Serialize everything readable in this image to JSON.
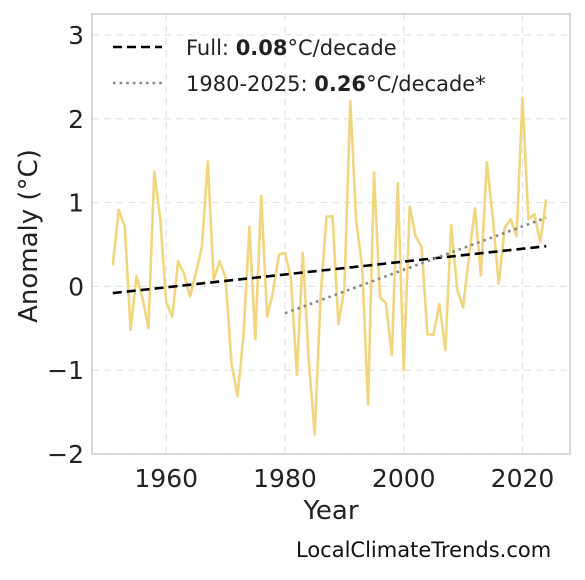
{
  "credit": "LocalClimateTrends.com",
  "chart_data": {
    "type": "line",
    "title": "",
    "xlabel": "Year",
    "ylabel": "Anomaly (°C)",
    "xlim": [
      1947.5,
      2028
    ],
    "ylim": [
      -2,
      3.25
    ],
    "x_ticks": [
      1960,
      1980,
      2000,
      2020
    ],
    "y_ticks": [
      {
        "value": -2,
        "label": "−2"
      },
      {
        "value": -1,
        "label": "−1"
      },
      {
        "value": 0,
        "label": "0"
      },
      {
        "value": 1,
        "label": "1"
      },
      {
        "value": 2,
        "label": "2"
      },
      {
        "value": 3,
        "label": "3"
      }
    ],
    "grid": true,
    "legend_position": "top-left",
    "series": [
      {
        "color": "#f2d67f",
        "style": "solid",
        "x": [
          1951,
          1952,
          1953,
          1954,
          1955,
          1956,
          1957,
          1958,
          1959,
          1960,
          1961,
          1962,
          1963,
          1964,
          1965,
          1966,
          1967,
          1968,
          1969,
          1970,
          1971,
          1972,
          1973,
          1974,
          1975,
          1976,
          1977,
          1978,
          1979,
          1980,
          1981,
          1982,
          1983,
          1984,
          1985,
          1986,
          1987,
          1988,
          1989,
          1990,
          1991,
          1992,
          1993,
          1994,
          1995,
          1996,
          1997,
          1998,
          1999,
          2000,
          2001,
          2002,
          2003,
          2004,
          2005,
          2006,
          2007,
          2008,
          2009,
          2010,
          2011,
          2012,
          2013,
          2014,
          2015,
          2016,
          2017,
          2018,
          2019,
          2020,
          2021,
          2022,
          2023,
          2024
        ],
        "values": [
          0.25,
          0.91,
          0.72,
          -0.52,
          0.12,
          -0.14,
          -0.5,
          1.37,
          0.8,
          -0.18,
          -0.36,
          0.3,
          0.15,
          -0.12,
          0.16,
          0.47,
          1.49,
          0.08,
          0.3,
          0.1,
          -0.92,
          -1.31,
          -0.6,
          0.71,
          -0.63,
          1.08,
          -0.36,
          -0.06,
          0.38,
          0.4,
          0.1,
          -1.06,
          0.4,
          -0.87,
          -1.77,
          -0.13,
          0.83,
          0.84,
          -0.45,
          -0.03,
          2.21,
          0.78,
          0.23,
          -1.41,
          1.36,
          -0.13,
          -0.2,
          -0.82,
          1.23,
          -1.0,
          0.95,
          0.6,
          0.47,
          -0.57,
          -0.58,
          -0.21,
          -0.76,
          0.73,
          -0.04,
          -0.25,
          0.37,
          0.93,
          0.13,
          1.48,
          0.82,
          0.03,
          0.7,
          0.8,
          0.6,
          2.25,
          0.8,
          0.86,
          0.53,
          1.04
        ]
      },
      {
        "name": "Full",
        "rate": "0.08",
        "unit": "°C/decade",
        "color": "#000000",
        "style": "dashed",
        "x": [
          1951,
          2024
        ],
        "values": [
          -0.08,
          0.48
        ]
      },
      {
        "name": "1980-2025",
        "rate": "0.26",
        "unit": "°C/decade*",
        "color": "#888888",
        "style": "dotted",
        "x": [
          1980,
          2024
        ],
        "values": [
          -0.32,
          0.82
        ]
      }
    ]
  }
}
